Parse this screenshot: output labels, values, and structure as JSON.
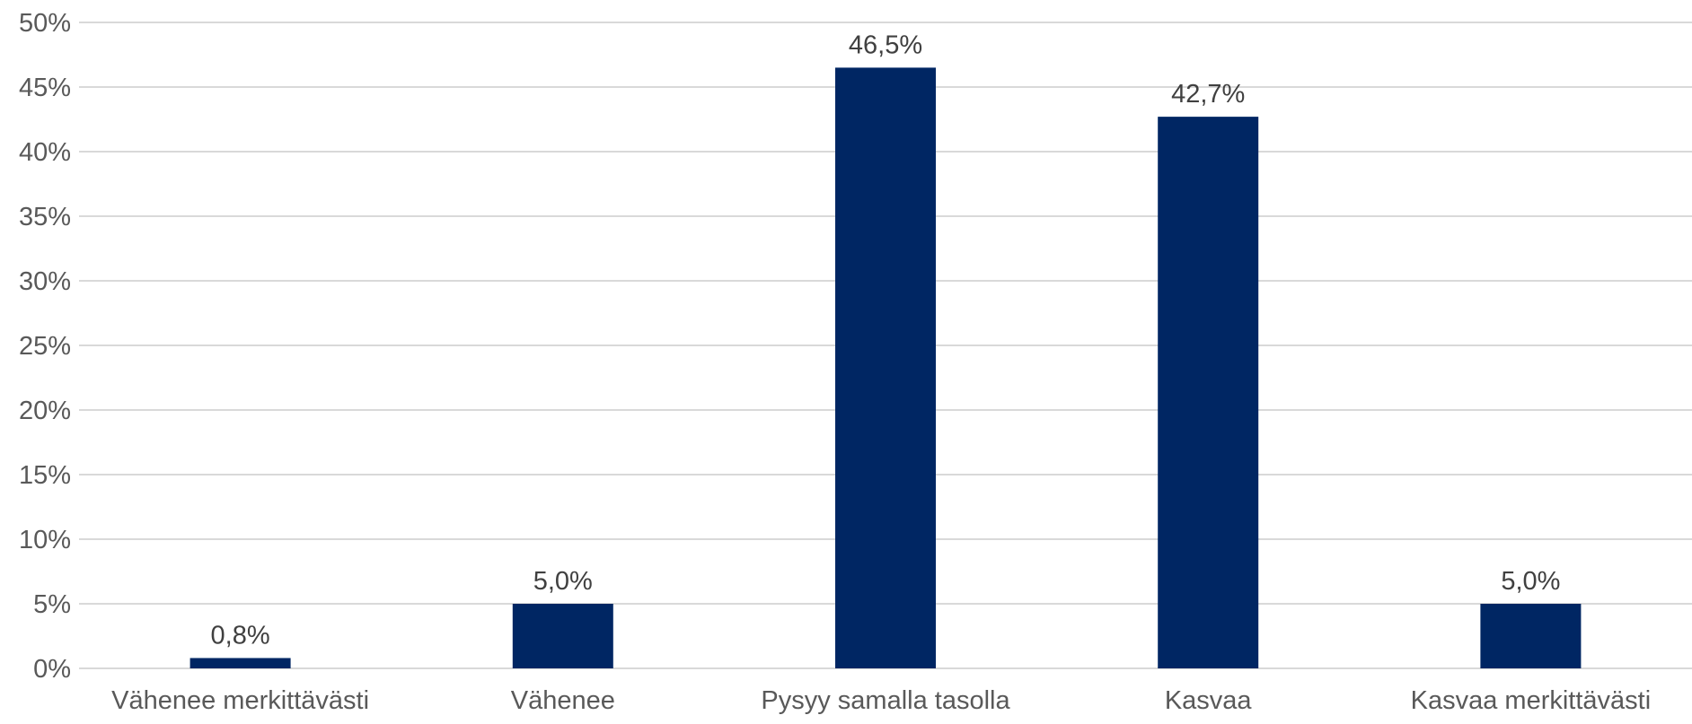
{
  "chart_data": {
    "type": "bar",
    "categories": [
      "Vähenee merkittävästi",
      "Vähenee",
      "Pysyy samalla tasolla",
      "Kasvaa",
      "Kasvaa merkittävästi"
    ],
    "values": [
      0.8,
      5.0,
      46.5,
      42.7,
      5.0
    ],
    "data_labels": [
      "0,8%",
      "5,0%",
      "46,5%",
      "42,7%",
      "5,0%"
    ],
    "y_ticks": [
      0,
      5,
      10,
      15,
      20,
      25,
      30,
      35,
      40,
      45,
      50
    ],
    "y_tick_labels": [
      "0%",
      "5%",
      "10%",
      "15%",
      "20%",
      "25%",
      "30%",
      "35%",
      "40%",
      "45%",
      "50%"
    ],
    "ylim": [
      0,
      50
    ],
    "title": "",
    "xlabel": "",
    "ylabel": "",
    "grid": true,
    "legend": "none",
    "bar_color": "#002663",
    "grid_color": "#d9d9d9",
    "label_color": "#404040",
    "tick_color": "#595959"
  }
}
